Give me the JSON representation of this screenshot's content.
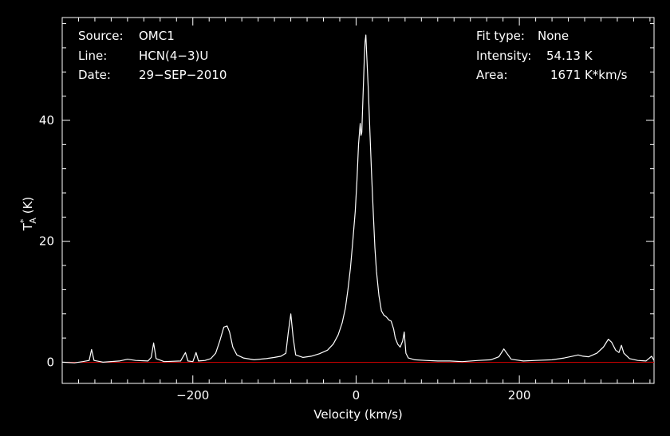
{
  "chart_data": {
    "type": "line",
    "title": "",
    "xlabel": "Velocity (km/s)",
    "ylabel_main": "T",
    "ylabel_sup": "*",
    "ylabel_sub": "A",
    "ylabel_unit": " (K)",
    "xlim": [
      -360,
      365
    ],
    "ylim": [
      -3.5,
      57
    ],
    "xticks": [
      -200,
      0,
      200
    ],
    "yticks": [
      0,
      20,
      40
    ],
    "grid": false,
    "background": "#000000",
    "foreground": "#ffffff",
    "baseline": {
      "value": 0,
      "color": "#cc0000"
    },
    "info_left": [
      {
        "key": "Source:",
        "value": "OMC1"
      },
      {
        "key": "Line:",
        "value": "HCN(4−3)U"
      },
      {
        "key": "Date:",
        "value": "29−SEP−2010"
      }
    ],
    "info_right": [
      {
        "key": "Fit type:",
        "value": "None"
      },
      {
        "key": "Intensity:",
        "value": "54.13 K"
      },
      {
        "key": "Area:",
        "value": "1671 K*km/s"
      }
    ],
    "series": [
      {
        "color": "#ffffff",
        "points": [
          [
            -360,
            0.0
          ],
          [
            -345,
            -0.1
          ],
          [
            -335,
            0.1
          ],
          [
            -327,
            0.3
          ],
          [
            -324,
            2.1
          ],
          [
            -321,
            0.3
          ],
          [
            -310,
            0.0
          ],
          [
            -290,
            0.2
          ],
          [
            -280,
            0.5
          ],
          [
            -270,
            0.3
          ],
          [
            -255,
            0.2
          ],
          [
            -251,
            0.8
          ],
          [
            -248,
            3.2
          ],
          [
            -245,
            0.6
          ],
          [
            -235,
            0.1
          ],
          [
            -215,
            0.2
          ],
          [
            -209,
            1.6
          ],
          [
            -206,
            0.2
          ],
          [
            -200,
            0.1
          ],
          [
            -196,
            1.6
          ],
          [
            -193,
            0.2
          ],
          [
            -185,
            0.3
          ],
          [
            -178,
            0.6
          ],
          [
            -172,
            1.5
          ],
          [
            -167,
            3.5
          ],
          [
            -162,
            5.8
          ],
          [
            -158,
            6.0
          ],
          [
            -155,
            5.0
          ],
          [
            -151,
            2.5
          ],
          [
            -146,
            1.2
          ],
          [
            -138,
            0.7
          ],
          [
            -125,
            0.4
          ],
          [
            -110,
            0.6
          ],
          [
            -100,
            0.8
          ],
          [
            -92,
            1.0
          ],
          [
            -86,
            1.5
          ],
          [
            -83,
            5.0
          ],
          [
            -80,
            8.0
          ],
          [
            -77,
            4.0
          ],
          [
            -74,
            1.2
          ],
          [
            -65,
            0.8
          ],
          [
            -55,
            1.0
          ],
          [
            -45,
            1.4
          ],
          [
            -35,
            2.0
          ],
          [
            -28,
            3.0
          ],
          [
            -22,
            4.5
          ],
          [
            -17,
            6.5
          ],
          [
            -13,
            9.0
          ],
          [
            -10,
            12.0
          ],
          [
            -7,
            15.5
          ],
          [
            -4,
            20.0
          ],
          [
            -1,
            25.0
          ],
          [
            1,
            30.0
          ],
          [
            3,
            36.0
          ],
          [
            5,
            39.5
          ],
          [
            6,
            37.5
          ],
          [
            7,
            38.0
          ],
          [
            8,
            42.0
          ],
          [
            10,
            50.0
          ],
          [
            11,
            53.0
          ],
          [
            12,
            54.1
          ],
          [
            13,
            51.0
          ],
          [
            15,
            45.0
          ],
          [
            17,
            38.0
          ],
          [
            19,
            31.0
          ],
          [
            21,
            25.0
          ],
          [
            23,
            19.0
          ],
          [
            25,
            15.0
          ],
          [
            28,
            11.0
          ],
          [
            31,
            8.5
          ],
          [
            34,
            7.8
          ],
          [
            37,
            7.5
          ],
          [
            40,
            7.0
          ],
          [
            43,
            6.8
          ],
          [
            46,
            5.5
          ],
          [
            48,
            4.0
          ],
          [
            51,
            3.0
          ],
          [
            54,
            2.5
          ],
          [
            57,
            3.5
          ],
          [
            59,
            5.0
          ],
          [
            61,
            1.5
          ],
          [
            64,
            0.7
          ],
          [
            72,
            0.4
          ],
          [
            85,
            0.3
          ],
          [
            100,
            0.2
          ],
          [
            115,
            0.2
          ],
          [
            130,
            0.1
          ],
          [
            150,
            0.3
          ],
          [
            165,
            0.4
          ],
          [
            175,
            0.9
          ],
          [
            181,
            2.2
          ],
          [
            184,
            1.6
          ],
          [
            190,
            0.5
          ],
          [
            205,
            0.2
          ],
          [
            220,
            0.3
          ],
          [
            240,
            0.4
          ],
          [
            255,
            0.7
          ],
          [
            265,
            1.0
          ],
          [
            272,
            1.2
          ],
          [
            278,
            1.0
          ],
          [
            285,
            0.9
          ],
          [
            295,
            1.5
          ],
          [
            303,
            2.5
          ],
          [
            309,
            3.8
          ],
          [
            313,
            3.3
          ],
          [
            318,
            2.0
          ],
          [
            322,
            1.6
          ],
          [
            325,
            2.8
          ],
          [
            328,
            1.5
          ],
          [
            335,
            0.6
          ],
          [
            345,
            0.3
          ],
          [
            355,
            0.2
          ],
          [
            362,
            1.0
          ],
          [
            365,
            0.3
          ]
        ]
      }
    ]
  }
}
